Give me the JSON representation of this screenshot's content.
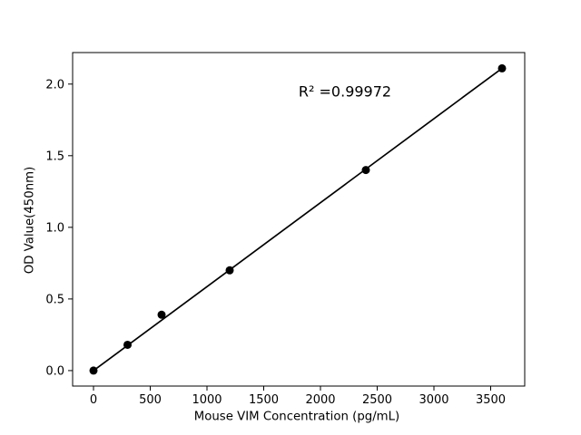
{
  "chart_data": {
    "type": "scatter",
    "title": "",
    "xlabel": "Mouse VIM Concentration (pg/mL)",
    "ylabel": "OD Value(450nm)",
    "annotation": "R² =0.99972",
    "r_squared": 0.99972,
    "x": [
      0,
      300,
      600,
      1200,
      2400,
      3600
    ],
    "y": [
      0.0,
      0.18,
      0.39,
      0.7,
      1.4,
      2.11
    ],
    "fit_line": {
      "x": [
        0,
        3600
      ],
      "y": [
        0.0,
        2.11
      ]
    },
    "xticks": {
      "values": [
        0,
        500,
        1000,
        1500,
        2000,
        2500,
        3000,
        3500
      ],
      "labels": [
        "0",
        "500",
        "1000",
        "1500",
        "2000",
        "2500",
        "3000",
        "3500"
      ]
    },
    "yticks": {
      "values": [
        0.0,
        0.5,
        1.0,
        1.5,
        2.0
      ],
      "labels": [
        "0.0",
        "0.5",
        "1.0",
        "1.5",
        "2.0"
      ]
    },
    "xlim": [
      -184,
      3800
    ],
    "ylim": [
      -0.108,
      2.22
    ],
    "grid": false,
    "legend": null,
    "marker_color": "#000000",
    "line_color": "#000000",
    "axis_color": "#000000",
    "background": "#ffffff"
  }
}
